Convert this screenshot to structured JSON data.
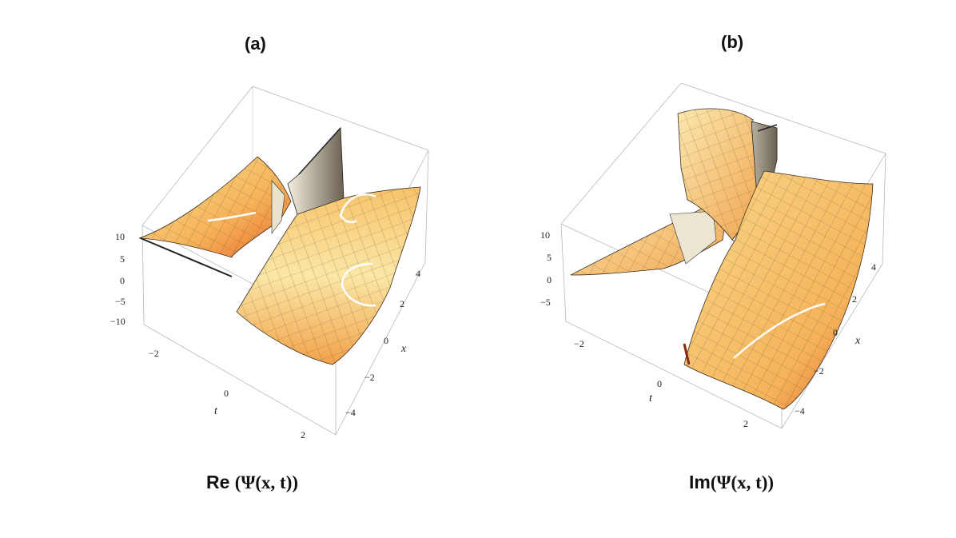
{
  "panels": [
    {
      "label": "(a)",
      "caption_prefix": "Re ",
      "caption_math": "(Ψ(x, t))",
      "xlabel": "x",
      "tlabel": "t",
      "z_ticks": [
        "10",
        "5",
        "0",
        "−5",
        "−10"
      ],
      "t_ticks": [
        "−2",
        "0",
        "2"
      ],
      "x_ticks": [
        "4",
        "2",
        "0",
        "−2",
        "−4"
      ]
    },
    {
      "label": "(b)",
      "caption_prefix": "Im",
      "caption_math": "(Ψ(x, t))",
      "xlabel": "x",
      "tlabel": "t",
      "z_ticks": [
        "10",
        "5",
        "0",
        "−5"
      ],
      "t_ticks": [
        "−2",
        "0",
        "2"
      ],
      "x_ticks": [
        "4",
        "2",
        "0",
        "−2",
        "−4"
      ]
    }
  ],
  "chart_data": [
    {
      "type": "surface3d",
      "title": "Re (Ψ(x, t))",
      "xlabel": "x",
      "ylabel": "t",
      "x_range": [
        -5,
        5
      ],
      "t_range": [
        -3,
        3
      ],
      "z_range": [
        -10,
        10
      ],
      "z_ticks": [
        10,
        5,
        0,
        -5,
        -10
      ],
      "t_ticks": [
        -2,
        0,
        2
      ],
      "x_ticks": [
        4,
        2,
        0,
        -2,
        -4
      ],
      "colormap": "orange-yellow"
    },
    {
      "type": "surface3d",
      "title": "Im(Ψ(x, t))",
      "xlabel": "x",
      "ylabel": "t",
      "x_range": [
        -5,
        5
      ],
      "t_range": [
        -3,
        3
      ],
      "z_range": [
        -8,
        12
      ],
      "z_ticks": [
        10,
        5,
        0,
        -5
      ],
      "t_ticks": [
        -2,
        0,
        2
      ],
      "x_ticks": [
        4,
        2,
        0,
        -2,
        -4
      ],
      "colormap": "orange-yellow"
    }
  ]
}
